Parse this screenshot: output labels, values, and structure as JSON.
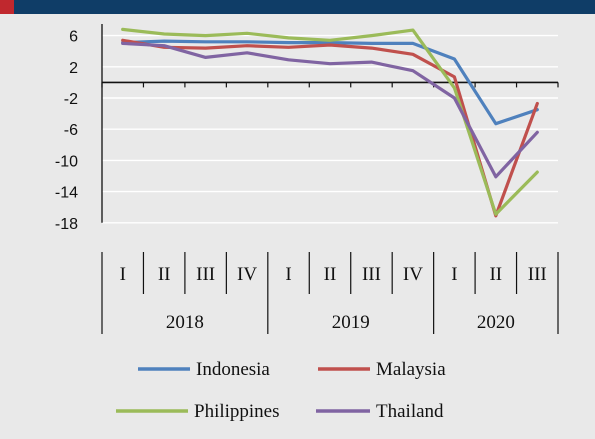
{
  "chart_data": {
    "type": "line",
    "title": "",
    "xlabel": "",
    "ylabel": "",
    "ylim": [
      -18,
      8
    ],
    "yticks": [
      6,
      2,
      -2,
      -6,
      -10,
      -14,
      -18
    ],
    "grid": true,
    "legend_position": "bottom",
    "quarters": [
      "I",
      "II",
      "III",
      "IV",
      "I",
      "II",
      "III",
      "IV",
      "I",
      "II",
      "III"
    ],
    "years": [
      "2018",
      "2019",
      "2020"
    ],
    "series": [
      {
        "name": "Indonesia",
        "color": "#4f81bd",
        "values": [
          5.1,
          5.3,
          5.2,
          5.2,
          5.1,
          5.1,
          5.0,
          5.0,
          3.0,
          -5.3,
          -3.5
        ]
      },
      {
        "name": "Malaysia",
        "color": "#c0504d",
        "values": [
          5.4,
          4.5,
          4.4,
          4.7,
          4.5,
          4.8,
          4.4,
          3.6,
          0.7,
          -17.1,
          -2.7
        ]
      },
      {
        "name": "Philippines",
        "color": "#9bbb59",
        "values": [
          6.8,
          6.2,
          6.0,
          6.3,
          5.7,
          5.4,
          6.0,
          6.7,
          -0.7,
          -16.9,
          -11.5
        ]
      },
      {
        "name": "Thailand",
        "color": "#8064a2",
        "values": [
          5.0,
          4.7,
          3.2,
          3.8,
          2.9,
          2.4,
          2.6,
          1.5,
          -2.0,
          -12.1,
          -6.4
        ]
      }
    ]
  }
}
